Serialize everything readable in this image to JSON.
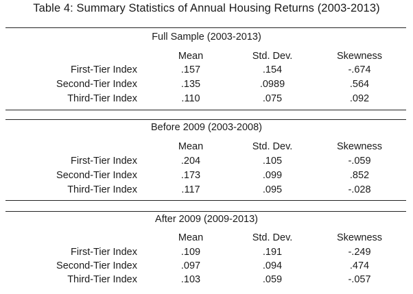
{
  "title": "Table 4: Summary Statistics of Annual Housing Returns (2003-2013)",
  "columns": [
    "Mean",
    "Std. Dev.",
    "Skewness"
  ],
  "sections": [
    {
      "title": "Full Sample (2003-2013)",
      "rows": [
        {
          "label": "First-Tier Index",
          "mean": ".157",
          "sd": ".154",
          "skew": "-.674"
        },
        {
          "label": "Second-Tier Index",
          "mean": ".135",
          "sd": ".0989",
          "skew": ".564"
        },
        {
          "label": "Third-Tier Index",
          "mean": ".110",
          "sd": ".075",
          "skew": ".092"
        }
      ]
    },
    {
      "title": "Before 2009 (2003-2008)",
      "rows": [
        {
          "label": "First-Tier Index",
          "mean": ".204",
          "sd": ".105",
          "skew": "-.059"
        },
        {
          "label": "Second-Tier Index",
          "mean": ".173",
          "sd": ".099",
          "skew": ".852"
        },
        {
          "label": "Third-Tier Index",
          "mean": ".117",
          "sd": ".095",
          "skew": "-.028"
        }
      ]
    },
    {
      "title": "After 2009 (2009-2013)",
      "rows": [
        {
          "label": "First-Tier Index",
          "mean": ".109",
          "sd": ".191",
          "skew": "-.249"
        },
        {
          "label": "Second-Tier Index",
          "mean": ".097",
          "sd": ".094",
          "skew": ".474"
        },
        {
          "label": "Third-Tier Index",
          "mean": ".103",
          "sd": ".059",
          "skew": "-.057"
        }
      ]
    }
  ]
}
